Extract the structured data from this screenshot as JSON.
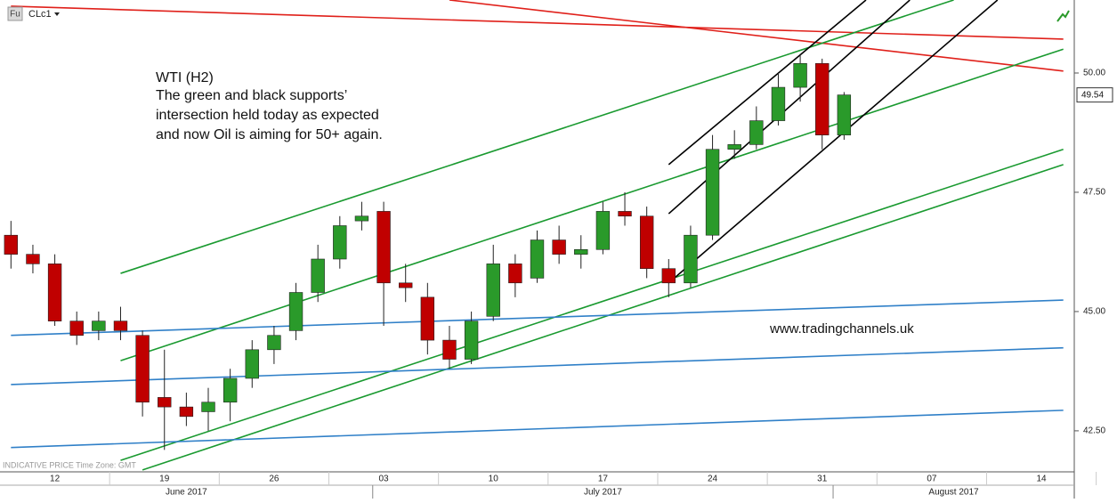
{
  "chart_data": {
    "type": "candlestick",
    "symbol": "CLc1",
    "badge": "Fu",
    "footer_note": "INDICATIVE PRICE   Time Zone: GMT",
    "annotation": [
      "WTI (H2)",
      "The green and black supports’",
      "intersection held today as expected",
      "and now Oil is aiming for 50+ again."
    ],
    "watermark": "www.tradingchannels.uk",
    "last_price": 49.54,
    "x": [
      "2017-06-08",
      "2017-06-09",
      "2017-06-12",
      "2017-06-13",
      "2017-06-14",
      "2017-06-15",
      "2017-06-16",
      "2017-06-19",
      "2017-06-20",
      "2017-06-21",
      "2017-06-22",
      "2017-06-23",
      "2017-06-26",
      "2017-06-27",
      "2017-06-28",
      "2017-06-29",
      "2017-06-30",
      "2017-07-03",
      "2017-07-04",
      "2017-07-05",
      "2017-07-06",
      "2017-07-07",
      "2017-07-10",
      "2017-07-11",
      "2017-07-12",
      "2017-07-13",
      "2017-07-14",
      "2017-07-17",
      "2017-07-18",
      "2017-07-19",
      "2017-07-20",
      "2017-07-21",
      "2017-07-24",
      "2017-07-25",
      "2017-07-26",
      "2017-07-27",
      "2017-07-28",
      "2017-07-31",
      "2017-08-01"
    ],
    "open": [
      46.6,
      46.2,
      46.0,
      44.8,
      44.6,
      44.8,
      44.5,
      43.2,
      43.0,
      42.9,
      43.1,
      43.6,
      44.2,
      44.6,
      45.4,
      46.1,
      46.9,
      47.1,
      45.6,
      45.3,
      44.4,
      44.0,
      44.9,
      46.0,
      45.7,
      46.5,
      46.2,
      46.3,
      47.1,
      47.0,
      45.9,
      45.6,
      46.6,
      48.4,
      48.5,
      49.0,
      49.7,
      50.2,
      48.7
    ],
    "high": [
      46.9,
      46.4,
      46.2,
      45.0,
      45.0,
      45.1,
      44.6,
      44.2,
      43.3,
      43.4,
      43.8,
      44.4,
      44.7,
      45.6,
      46.4,
      47.0,
      47.3,
      47.3,
      46.0,
      45.6,
      44.7,
      45.0,
      46.4,
      46.2,
      46.7,
      46.8,
      46.6,
      47.3,
      47.5,
      47.2,
      46.1,
      46.8,
      48.7,
      48.8,
      49.3,
      50.0,
      50.4,
      50.3,
      49.6
    ],
    "low": [
      45.9,
      45.8,
      44.7,
      44.3,
      44.4,
      44.4,
      42.8,
      42.1,
      42.6,
      42.5,
      42.7,
      43.4,
      43.9,
      44.4,
      45.2,
      45.9,
      46.7,
      44.7,
      45.2,
      44.1,
      43.8,
      43.9,
      44.8,
      45.3,
      45.6,
      46.0,
      45.9,
      46.2,
      46.8,
      45.7,
      45.3,
      45.5,
      46.5,
      48.2,
      48.4,
      48.9,
      49.4,
      48.4,
      48.6
    ],
    "close": [
      46.2,
      46.0,
      44.8,
      44.5,
      44.8,
      44.6,
      43.1,
      43.0,
      42.8,
      43.1,
      43.6,
      44.2,
      44.5,
      45.4,
      46.1,
      46.8,
      47.0,
      45.6,
      45.5,
      44.4,
      44.0,
      44.8,
      46.0,
      45.6,
      46.5,
      46.2,
      46.3,
      47.1,
      47.0,
      45.9,
      45.6,
      46.6,
      48.4,
      48.5,
      49.0,
      49.7,
      50.2,
      48.7,
      49.54
    ],
    "up_color": "#2a9a2a",
    "down_color": "#c00000",
    "xlim": [
      "2017-06-08",
      "2017-08-15"
    ],
    "xticks": [
      {
        "value": "2017-06-12",
        "label": "12"
      },
      {
        "value": "2017-06-19",
        "label": "19"
      },
      {
        "value": "2017-06-26",
        "label": "26"
      },
      {
        "value": "2017-07-03",
        "label": "03"
      },
      {
        "value": "2017-07-10",
        "label": "10"
      },
      {
        "value": "2017-07-17",
        "label": "17"
      },
      {
        "value": "2017-07-24",
        "label": "24"
      },
      {
        "value": "2017-07-31",
        "label": "31"
      },
      {
        "value": "2017-08-07",
        "label": "07"
      },
      {
        "value": "2017-08-14",
        "label": "14"
      }
    ],
    "month_labels": [
      {
        "value": "2017-06",
        "label": "June 2017"
      },
      {
        "value": "2017-07",
        "label": "July 2017"
      },
      {
        "value": "2017-08",
        "label": "August 2017"
      }
    ],
    "ylim": [
      41.64,
      51.53
    ],
    "yticks": [
      {
        "value": 42.5,
        "label": "42.50"
      },
      {
        "value": 45,
        "label": "45.00"
      },
      {
        "value": 47.5,
        "label": "47.50"
      },
      {
        "value": 50,
        "label": "50.00"
      }
    ],
    "trend_lines": [
      {
        "color": "#e0201a",
        "points": [
          [
            "2017-06-08",
            51.4
          ],
          [
            "2017-08-15",
            50.71
          ]
        ]
      },
      {
        "color": "#e0201a",
        "points": [
          [
            "2017-07-06",
            51.53
          ],
          [
            "2017-08-15",
            50.04
          ]
        ]
      },
      {
        "color": "#1a9a30",
        "points": [
          [
            "2017-06-15",
            45.8
          ],
          [
            "2017-08-08",
            51.53
          ]
        ]
      },
      {
        "color": "#1a9a30",
        "points": [
          [
            "2017-06-15",
            43.97
          ],
          [
            "2017-08-15",
            50.5
          ]
        ]
      },
      {
        "color": "#1a9a30",
        "points": [
          [
            "2017-06-15",
            41.88
          ],
          [
            "2017-08-15",
            48.4
          ]
        ]
      },
      {
        "color": "#1a9a30",
        "points": [
          [
            "2017-06-16",
            41.68
          ],
          [
            "2017-08-15",
            48.08
          ]
        ]
      },
      {
        "color": "#3080c8",
        "points": [
          [
            "2017-06-08",
            44.5
          ],
          [
            "2017-08-15",
            45.24
          ]
        ]
      },
      {
        "color": "#3080c8",
        "points": [
          [
            "2017-06-08",
            43.47
          ],
          [
            "2017-08-15",
            44.24
          ]
        ]
      },
      {
        "color": "#3080c8",
        "points": [
          [
            "2017-06-08",
            42.15
          ],
          [
            "2017-08-15",
            42.93
          ]
        ]
      },
      {
        "color": "#000000",
        "points": [
          [
            "2017-07-20",
            48.08
          ],
          [
            "2017-08-02",
            51.53
          ]
        ]
      },
      {
        "color": "#000000",
        "points": [
          [
            "2017-07-20",
            47.05
          ],
          [
            "2017-08-04",
            51.53
          ]
        ]
      },
      {
        "color": "#000000",
        "points": [
          [
            "2017-07-20",
            45.6
          ],
          [
            "2017-08-10",
            51.53
          ]
        ]
      }
    ]
  }
}
